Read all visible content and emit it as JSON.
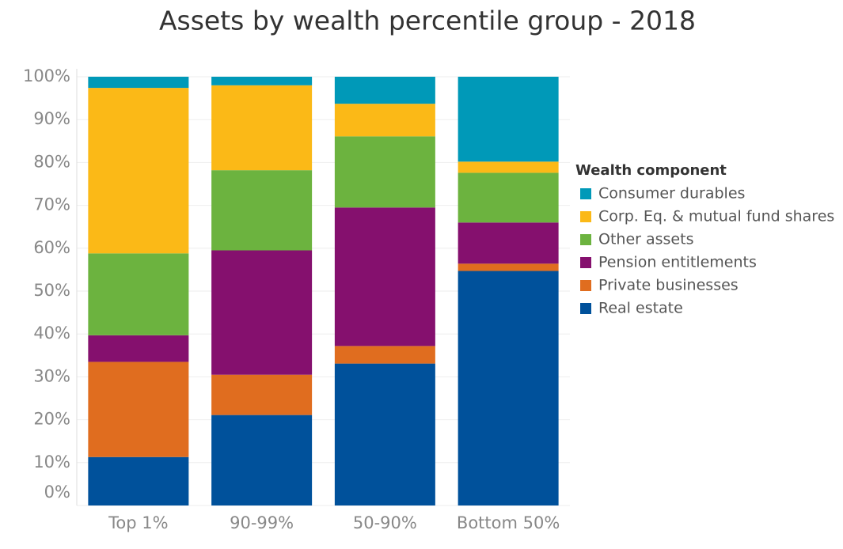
{
  "chart_data": {
    "type": "stacked_bar",
    "title": "Assets by wealth percentile group - 2018",
    "categories": [
      "Top 1%",
      "90-99%",
      "50-90%",
      "Bottom 50%"
    ],
    "legend_title": "Wealth component",
    "series": [
      {
        "name": "Consumer durables",
        "color": "#0099b8",
        "values": [
          2.6,
          2.0,
          6.3,
          19.8
        ]
      },
      {
        "name": "Corp. Eq. & mutual fund shares",
        "color": "#fbb917",
        "values": [
          38.6,
          19.8,
          7.6,
          2.6
        ]
      },
      {
        "name": "Other assets",
        "color": "#6cb33f",
        "values": [
          19.1,
          18.7,
          16.6,
          11.6
        ]
      },
      {
        "name": "Pension entitlements",
        "color": "#85106e",
        "values": [
          6.2,
          29.0,
          32.3,
          9.6
        ]
      },
      {
        "name": "Private businesses",
        "color": "#e06d1f",
        "values": [
          22.2,
          9.4,
          4.1,
          1.7
        ]
      },
      {
        "name": "Real estate",
        "color": "#00519b",
        "values": [
          11.3,
          21.1,
          33.1,
          54.7
        ]
      }
    ],
    "ylim": [
      0,
      100
    ],
    "yticks": [
      {
        "value": 0,
        "label": "0%"
      },
      {
        "value": 10,
        "label": "10%"
      },
      {
        "value": 20,
        "label": "20%"
      },
      {
        "value": 30,
        "label": "30%"
      },
      {
        "value": 40,
        "label": "40%"
      },
      {
        "value": 50,
        "label": "50%"
      },
      {
        "value": 60,
        "label": "60%"
      },
      {
        "value": 70,
        "label": "70%"
      },
      {
        "value": 80,
        "label": "80%"
      },
      {
        "value": 90,
        "label": "90%"
      },
      {
        "value": 100,
        "label": "100%"
      }
    ],
    "grid": true,
    "legend": "right"
  }
}
